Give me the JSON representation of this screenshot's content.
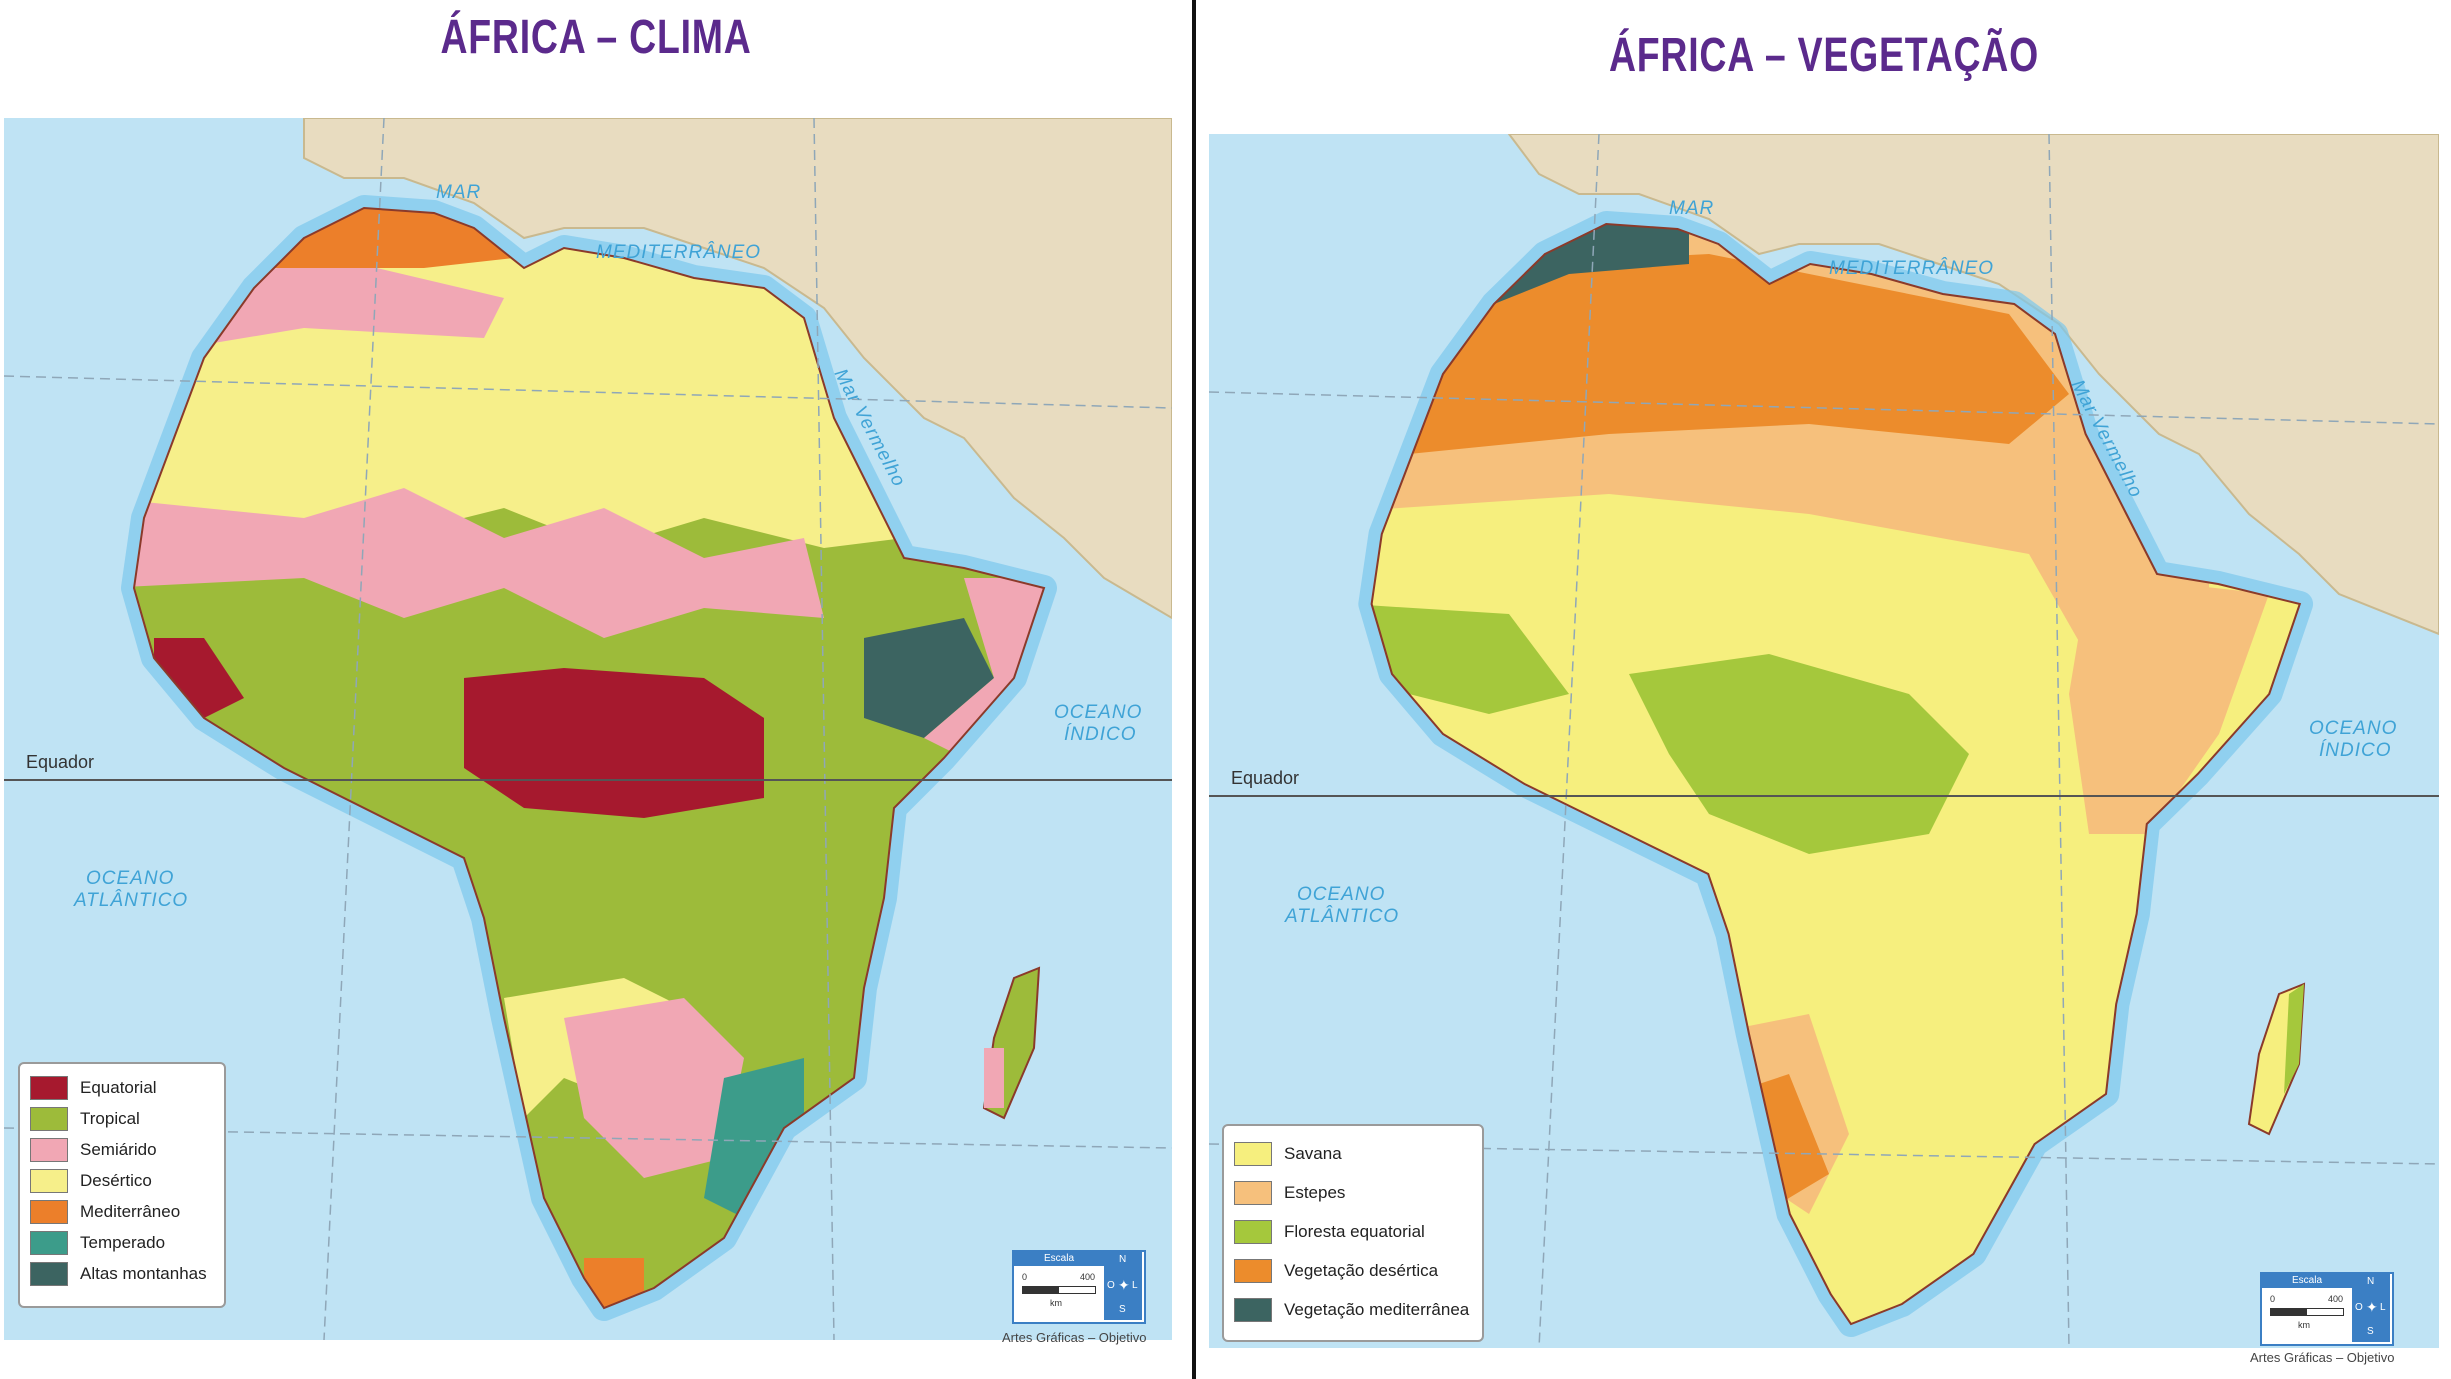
{
  "clima": {
    "title": "ÁFRICA – CLIMA",
    "labels": {
      "mar": "MAR",
      "mediterraneo": "MEDITERRÂNEO",
      "oceano_indico_1": "OCEANO",
      "oceano_indico_2": "ÍNDICO",
      "oceano_atlantico_1": "OCEANO",
      "oceano_atlantico_2": "ATLÂNTICO",
      "equador": "Equador",
      "mar_vermelho": "Mar Vermelho"
    },
    "legend": [
      {
        "label": "Equatorial",
        "color": "#a6192e"
      },
      {
        "label": "Tropical",
        "color": "#9dbb3a"
      },
      {
        "label": "Semiárido",
        "color": "#f1a7b4"
      },
      {
        "label": "Desértico",
        "color": "#f6ef8a"
      },
      {
        "label": "Mediterrâneo",
        "color": "#ec7f2a"
      },
      {
        "label": "Temperado",
        "color": "#3c9c8a"
      },
      {
        "label": "Altas montanhas",
        "color": "#3c6461"
      }
    ],
    "scale": {
      "head": "Escala",
      "zero": "0",
      "max": "400",
      "unit": "km",
      "n": "N",
      "s": "S",
      "l": "L",
      "o": "O"
    },
    "credit": "Artes Gráficas – Objetivo"
  },
  "vegetacao": {
    "title": "ÁFRICA – VEGETAÇÃO",
    "labels": {
      "mar": "MAR",
      "mediterraneo": "MEDITERRÂNEO",
      "oceano_indico_1": "OCEANO",
      "oceano_indico_2": "ÍNDICO",
      "oceano_atlantico_1": "OCEANO",
      "oceano_atlantico_2": "ATLÂNTICO",
      "equador": "Equador",
      "mar_vermelho": "Mar Vermelho"
    },
    "legend": [
      {
        "label": "Savana",
        "color": "#f6ef7e"
      },
      {
        "label": "Estepes",
        "color": "#f6c07c"
      },
      {
        "label": "Floresta equatorial",
        "color": "#a5c83c"
      },
      {
        "label": "Vegetação desértica",
        "color": "#ec8c2c"
      },
      {
        "label": "Vegetação mediterrânea",
        "color": "#3c6461"
      }
    ],
    "scale": {
      "head": "Escala",
      "zero": "0",
      "max": "400",
      "unit": "km",
      "n": "N",
      "s": "S",
      "l": "L",
      "o": "O"
    },
    "credit": "Artes Gráficas – Objetivo"
  },
  "colors": {
    "ocean": "#bfe3f4",
    "coast_glow": "#7cc8ec",
    "land_other": "#e8dcc0",
    "border": "#8b3a2a"
  }
}
